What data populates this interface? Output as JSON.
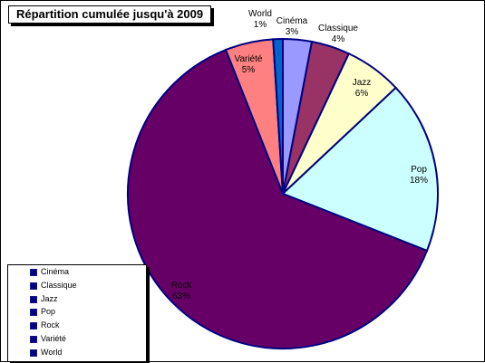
{
  "chart_data": {
    "type": "pie",
    "title": "Répartition cumulée jusqu'à 2009",
    "legend_position": "bottom-left",
    "slices": [
      {
        "name": "Cinéma",
        "value": 3,
        "label": "3%",
        "color": "#9999ff"
      },
      {
        "name": "Classique",
        "value": 4,
        "label": "4%",
        "color": "#993366"
      },
      {
        "name": "Jazz",
        "value": 6,
        "label": "6%",
        "color": "#ffffcc"
      },
      {
        "name": "Pop",
        "value": 18,
        "label": "18%",
        "color": "#ccffff"
      },
      {
        "name": "Rock",
        "value": 63,
        "label": "63%",
        "color": "#660066"
      },
      {
        "name": "Variété",
        "value": 5,
        "label": "5%",
        "color": "#ff8080"
      },
      {
        "name": "World",
        "value": 1,
        "label": "1%",
        "color": "#0066cc"
      }
    ],
    "border_color": "#000080"
  }
}
